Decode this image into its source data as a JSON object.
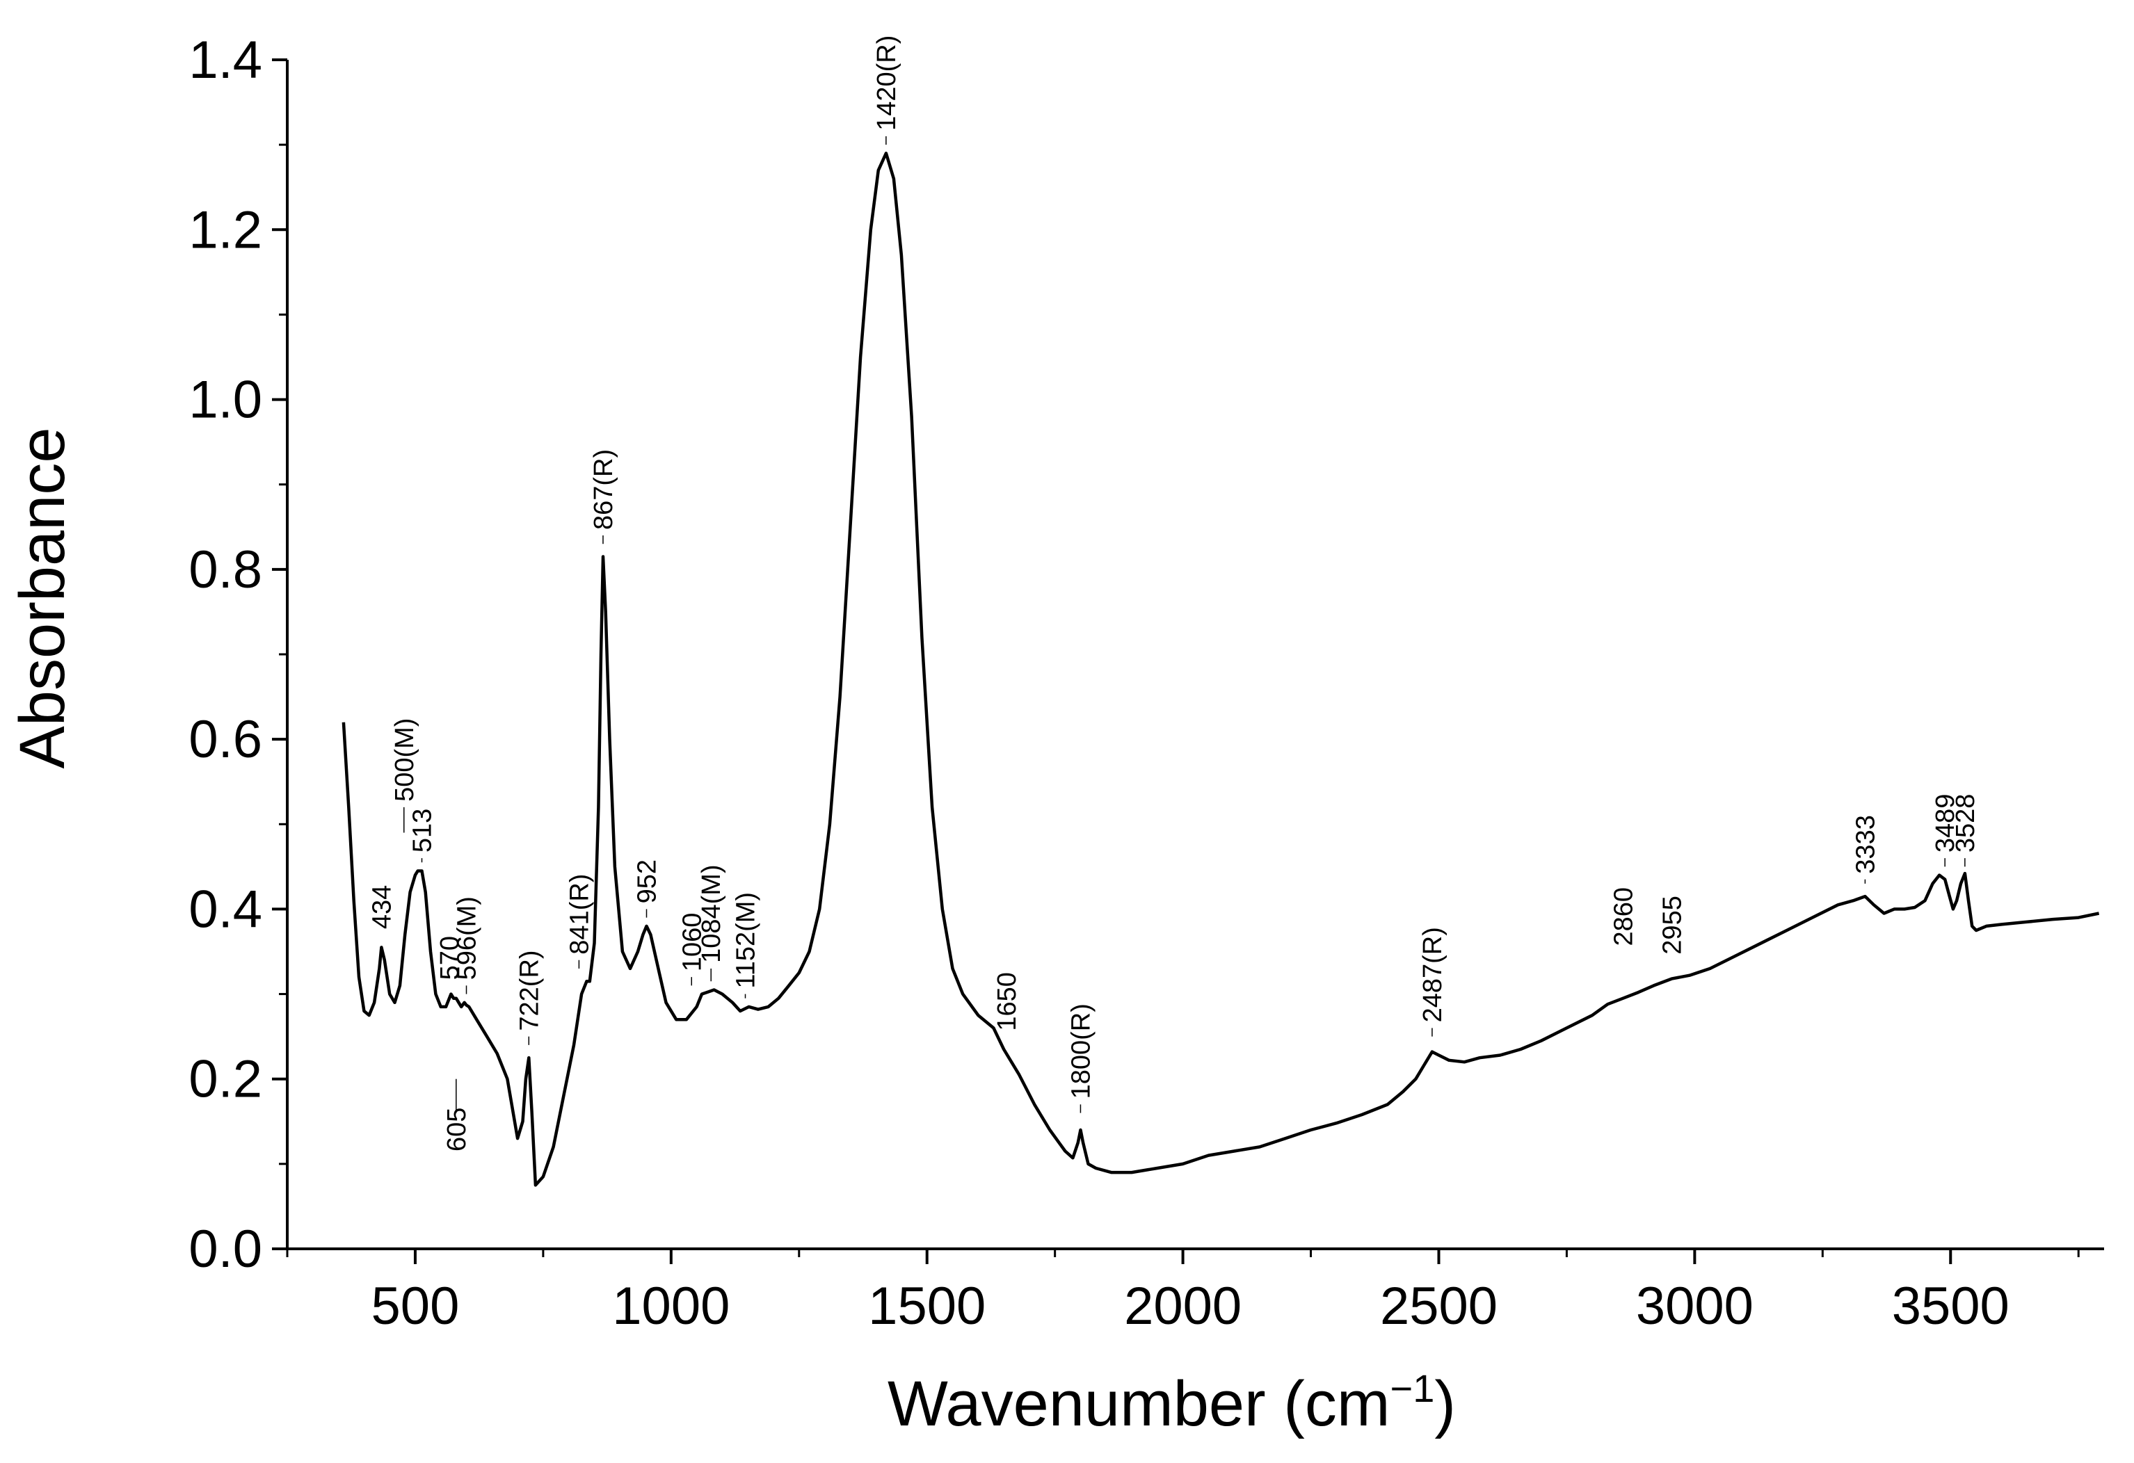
{
  "chart_data": {
    "type": "line",
    "title": "",
    "xlabel_main": "Wavenumber (cm",
    "xlabel_sup": "−1",
    "xlabel_close": ")",
    "ylabel": "Absorbance",
    "xlim": [
      250,
      3800
    ],
    "ylim": [
      0.0,
      1.4
    ],
    "x_ticks": [
      500,
      1000,
      1500,
      2000,
      2500,
      3000,
      3500
    ],
    "x_tick_labels": [
      "500",
      "1000",
      "1500",
      "2000",
      "2500",
      "3000",
      "3500"
    ],
    "y_ticks": [
      0.0,
      0.2,
      0.4,
      0.6,
      0.8,
      1.0,
      1.2,
      1.4
    ],
    "y_tick_labels": [
      "0.0",
      "0.2",
      "0.4",
      "0.6",
      "0.8",
      "1.0",
      "1.2",
      "1.4"
    ],
    "grid": false,
    "line_color": "#000000",
    "series": [
      {
        "name": "spectrum",
        "x": [
          360,
          370,
          380,
          390,
          400,
          410,
          420,
          430,
          434,
          440,
          450,
          460,
          470,
          480,
          490,
          500,
          505,
          510,
          513,
          520,
          530,
          540,
          550,
          560,
          570,
          575,
          580,
          590,
          596,
          600,
          605,
          620,
          640,
          660,
          680,
          700,
          710,
          716,
          722,
          728,
          735,
          750,
          770,
          790,
          810,
          825,
          835,
          841,
          850,
          858,
          863,
          867,
          872,
          880,
          890,
          905,
          920,
          935,
          945,
          952,
          960,
          975,
          990,
          1010,
          1030,
          1050,
          1060,
          1070,
          1084,
          1100,
          1120,
          1135,
          1152,
          1170,
          1190,
          1210,
          1230,
          1250,
          1270,
          1290,
          1310,
          1330,
          1350,
          1370,
          1390,
          1405,
          1420,
          1435,
          1450,
          1470,
          1490,
          1510,
          1530,
          1550,
          1570,
          1600,
          1630,
          1650,
          1680,
          1710,
          1740,
          1770,
          1785,
          1795,
          1800,
          1805,
          1815,
          1830,
          1860,
          1900,
          1950,
          2000,
          2050,
          2100,
          2150,
          2200,
          2250,
          2300,
          2350,
          2400,
          2430,
          2455,
          2470,
          2487,
          2500,
          2520,
          2550,
          2580,
          2620,
          2660,
          2700,
          2750,
          2800,
          2830,
          2860,
          2890,
          2920,
          2955,
          2990,
          3030,
          3080,
          3130,
          3180,
          3230,
          3280,
          3310,
          3333,
          3350,
          3370,
          3390,
          3410,
          3430,
          3450,
          3465,
          3478,
          3489,
          3498,
          3505,
          3512,
          3520,
          3528,
          3535,
          3542,
          3550,
          3570,
          3600,
          3650,
          3700,
          3750,
          3790
        ],
        "values": [
          0.62,
          0.52,
          0.41,
          0.32,
          0.28,
          0.275,
          0.29,
          0.33,
          0.355,
          0.34,
          0.3,
          0.29,
          0.31,
          0.37,
          0.42,
          0.44,
          0.445,
          0.445,
          0.445,
          0.42,
          0.35,
          0.3,
          0.285,
          0.285,
          0.3,
          0.295,
          0.295,
          0.285,
          0.29,
          0.287,
          0.285,
          0.27,
          0.25,
          0.23,
          0.2,
          0.13,
          0.15,
          0.2,
          0.225,
          0.16,
          0.075,
          0.085,
          0.12,
          0.18,
          0.24,
          0.3,
          0.315,
          0.315,
          0.36,
          0.52,
          0.7,
          0.815,
          0.75,
          0.6,
          0.45,
          0.35,
          0.33,
          0.35,
          0.37,
          0.38,
          0.37,
          0.33,
          0.29,
          0.27,
          0.27,
          0.285,
          0.3,
          0.302,
          0.305,
          0.3,
          0.29,
          0.28,
          0.285,
          0.282,
          0.285,
          0.295,
          0.31,
          0.325,
          0.35,
          0.4,
          0.5,
          0.65,
          0.85,
          1.05,
          1.2,
          1.27,
          1.29,
          1.26,
          1.17,
          0.98,
          0.72,
          0.52,
          0.4,
          0.33,
          0.3,
          0.275,
          0.26,
          0.235,
          0.205,
          0.17,
          0.14,
          0.115,
          0.107,
          0.125,
          0.14,
          0.125,
          0.1,
          0.095,
          0.09,
          0.09,
          0.095,
          0.1,
          0.11,
          0.115,
          0.12,
          0.13,
          0.14,
          0.148,
          0.158,
          0.17,
          0.185,
          0.2,
          0.215,
          0.232,
          0.228,
          0.222,
          0.22,
          0.225,
          0.228,
          0.235,
          0.245,
          0.26,
          0.275,
          0.288,
          0.295,
          0.302,
          0.31,
          0.318,
          0.322,
          0.33,
          0.345,
          0.36,
          0.375,
          0.39,
          0.405,
          0.41,
          0.415,
          0.405,
          0.395,
          0.4,
          0.4,
          0.402,
          0.41,
          0.43,
          0.44,
          0.435,
          0.415,
          0.4,
          0.41,
          0.43,
          0.442,
          0.41,
          0.38,
          0.375,
          0.38,
          0.382,
          0.385,
          0.388,
          0.39,
          0.395
        ]
      }
    ],
    "annotations": [
      {
        "text": "434",
        "x": 434,
        "y": 0.37,
        "ly": 0.37
      },
      {
        "text": "500(M)",
        "x": 478,
        "y": 0.52,
        "ly": 0.49
      },
      {
        "text": "513",
        "x": 513,
        "y": 0.46,
        "ly": 0.455
      },
      {
        "text": "570",
        "x": 567,
        "y": 0.31,
        "ly": 0.31
      },
      {
        "text": "596(M)",
        "x": 600,
        "y": 0.31,
        "ly": 0.3
      },
      {
        "text": "605",
        "x": 580,
        "y": 0.16,
        "ly": 0.2
      },
      {
        "text": "722(R)",
        "x": 722,
        "y": 0.25,
        "ly": 0.24
      },
      {
        "text": "841(R)",
        "x": 820,
        "y": 0.34,
        "ly": 0.33
      },
      {
        "text": "867(R)",
        "x": 867,
        "y": 0.84,
        "ly": 0.83
      },
      {
        "text": "952",
        "x": 952,
        "y": 0.4,
        "ly": 0.39
      },
      {
        "text": "1060",
        "x": 1040,
        "y": 0.32,
        "ly": 0.31
      },
      {
        "text": "1084(M)",
        "x": 1078,
        "y": 0.33,
        "ly": 0.315
      },
      {
        "text": "1152(M)",
        "x": 1145,
        "y": 0.3,
        "ly": 0.295
      },
      {
        "text": "1420(R)",
        "x": 1420,
        "y": 1.31,
        "ly": 1.3
      },
      {
        "text": "1650",
        "x": 1655,
        "y": 0.25,
        "ly": 0.25
      },
      {
        "text": "1800(R)",
        "x": 1800,
        "y": 0.17,
        "ly": 0.16
      },
      {
        "text": "2487(R)",
        "x": 2487,
        "y": 0.26,
        "ly": 0.25
      },
      {
        "text": "2860",
        "x": 2860,
        "y": 0.35,
        "ly": 0.35
      },
      {
        "text": "2955",
        "x": 2955,
        "y": 0.34,
        "ly": 0.34
      },
      {
        "text": "3333",
        "x": 3333,
        "y": 0.435,
        "ly": 0.43
      },
      {
        "text": "3489",
        "x": 3489,
        "y": 0.46,
        "ly": 0.45
      },
      {
        "text": "3528",
        "x": 3528,
        "y": 0.46,
        "ly": 0.45
      }
    ]
  }
}
